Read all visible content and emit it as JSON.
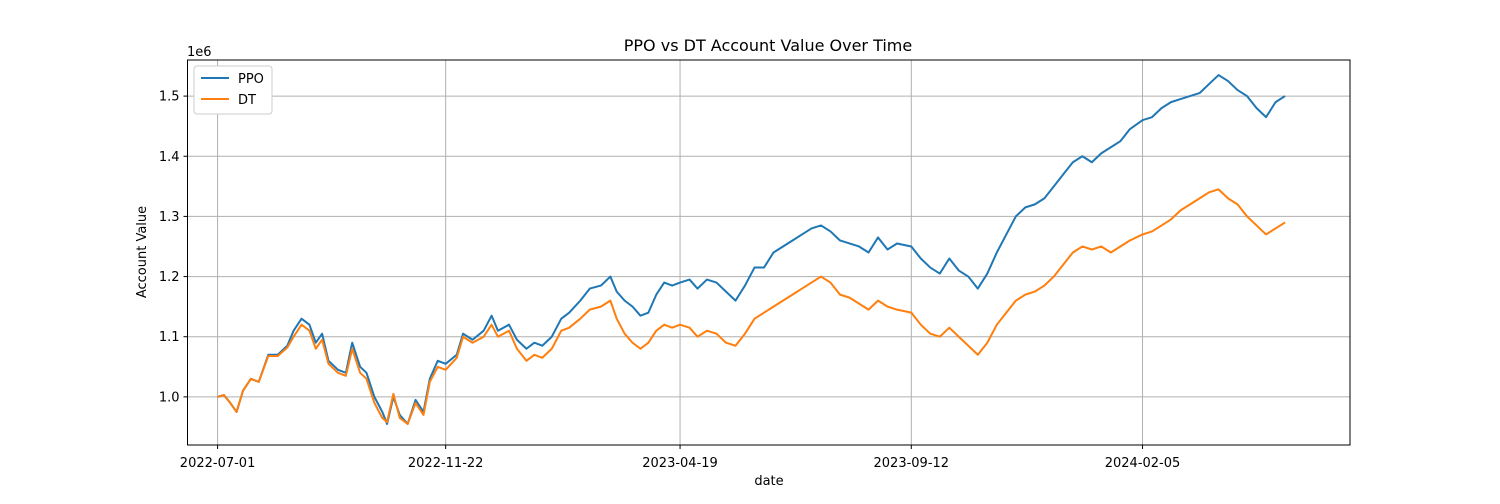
{
  "chart_data": {
    "type": "line",
    "title": "PPO vs DT Account Value Over Time",
    "xlabel": "date",
    "ylabel": "Account Value",
    "y_offset_label": "1e6",
    "xlim": [
      "2022-06-12",
      "2024-06-15"
    ],
    "ylim": [
      0.92,
      1.56
    ],
    "grid": true,
    "legend_position": "upper-left",
    "x_ticks": [
      "2022-07-01",
      "2022-11-22",
      "2023-04-19",
      "2023-09-12",
      "2024-02-05"
    ],
    "y_ticks": [
      1.0,
      1.1,
      1.2,
      1.3,
      1.4,
      1.5
    ],
    "y_tick_labels": [
      "1.0",
      "1.1",
      "1.2",
      "1.3",
      "1.4",
      "1.5"
    ],
    "series": [
      {
        "name": "PPO",
        "color": "#1f77b4",
        "points": [
          [
            "2022-07-01",
            1.0
          ],
          [
            "2022-07-05",
            1.003
          ],
          [
            "2022-07-09",
            0.99
          ],
          [
            "2022-07-13",
            0.975
          ],
          [
            "2022-07-17",
            1.01
          ],
          [
            "2022-07-22",
            1.03
          ],
          [
            "2022-07-27",
            1.025
          ],
          [
            "2022-08-02",
            1.07
          ],
          [
            "2022-08-08",
            1.07
          ],
          [
            "2022-08-14",
            1.085
          ],
          [
            "2022-08-18",
            1.11
          ],
          [
            "2022-08-23",
            1.13
          ],
          [
            "2022-08-28",
            1.12
          ],
          [
            "2022-09-01",
            1.09
          ],
          [
            "2022-09-05",
            1.105
          ],
          [
            "2022-09-09",
            1.06
          ],
          [
            "2022-09-15",
            1.045
          ],
          [
            "2022-09-20",
            1.04
          ],
          [
            "2022-09-24",
            1.09
          ],
          [
            "2022-09-29",
            1.05
          ],
          [
            "2022-10-03",
            1.04
          ],
          [
            "2022-10-08",
            1.0
          ],
          [
            "2022-10-13",
            0.975
          ],
          [
            "2022-10-16",
            0.955
          ],
          [
            "2022-10-20",
            1.0
          ],
          [
            "2022-10-24",
            0.97
          ],
          [
            "2022-10-29",
            0.955
          ],
          [
            "2022-11-03",
            0.995
          ],
          [
            "2022-11-08",
            0.975
          ],
          [
            "2022-11-12",
            1.03
          ],
          [
            "2022-11-17",
            1.06
          ],
          [
            "2022-11-22",
            1.055
          ],
          [
            "2022-11-29",
            1.07
          ],
          [
            "2022-12-03",
            1.105
          ],
          [
            "2022-12-09",
            1.095
          ],
          [
            "2022-12-16",
            1.11
          ],
          [
            "2022-12-21",
            1.135
          ],
          [
            "2022-12-25",
            1.11
          ],
          [
            "2023-01-01",
            1.12
          ],
          [
            "2023-01-06",
            1.095
          ],
          [
            "2023-01-12",
            1.08
          ],
          [
            "2023-01-17",
            1.09
          ],
          [
            "2023-01-22",
            1.085
          ],
          [
            "2023-01-28",
            1.1
          ],
          [
            "2023-02-03",
            1.13
          ],
          [
            "2023-02-08",
            1.14
          ],
          [
            "2023-02-15",
            1.16
          ],
          [
            "2023-02-21",
            1.18
          ],
          [
            "2023-02-28",
            1.185
          ],
          [
            "2023-03-06",
            1.2
          ],
          [
            "2023-03-10",
            1.175
          ],
          [
            "2023-03-15",
            1.16
          ],
          [
            "2023-03-20",
            1.15
          ],
          [
            "2023-03-25",
            1.135
          ],
          [
            "2023-03-30",
            1.14
          ],
          [
            "2023-04-04",
            1.17
          ],
          [
            "2023-04-09",
            1.19
          ],
          [
            "2023-04-14",
            1.185
          ],
          [
            "2023-04-19",
            1.19
          ],
          [
            "2023-04-25",
            1.195
          ],
          [
            "2023-04-30",
            1.18
          ],
          [
            "2023-05-06",
            1.195
          ],
          [
            "2023-05-12",
            1.19
          ],
          [
            "2023-05-18",
            1.175
          ],
          [
            "2023-05-24",
            1.16
          ],
          [
            "2023-05-30",
            1.185
          ],
          [
            "2023-06-05",
            1.215
          ],
          [
            "2023-06-11",
            1.215
          ],
          [
            "2023-06-17",
            1.24
          ],
          [
            "2023-06-23",
            1.25
          ],
          [
            "2023-06-29",
            1.26
          ],
          [
            "2023-07-05",
            1.27
          ],
          [
            "2023-07-11",
            1.28
          ],
          [
            "2023-07-17",
            1.285
          ],
          [
            "2023-07-23",
            1.275
          ],
          [
            "2023-07-29",
            1.26
          ],
          [
            "2023-08-04",
            1.255
          ],
          [
            "2023-08-10",
            1.25
          ],
          [
            "2023-08-16",
            1.24
          ],
          [
            "2023-08-22",
            1.265
          ],
          [
            "2023-08-28",
            1.245
          ],
          [
            "2023-09-03",
            1.255
          ],
          [
            "2023-09-12",
            1.25
          ],
          [
            "2023-09-18",
            1.23
          ],
          [
            "2023-09-24",
            1.215
          ],
          [
            "2023-09-30",
            1.205
          ],
          [
            "2023-10-06",
            1.23
          ],
          [
            "2023-10-12",
            1.21
          ],
          [
            "2023-10-18",
            1.2
          ],
          [
            "2023-10-24",
            1.18
          ],
          [
            "2023-10-30",
            1.205
          ],
          [
            "2023-11-05",
            1.24
          ],
          [
            "2023-11-11",
            1.27
          ],
          [
            "2023-11-17",
            1.3
          ],
          [
            "2023-11-23",
            1.315
          ],
          [
            "2023-11-29",
            1.32
          ],
          [
            "2023-12-05",
            1.33
          ],
          [
            "2023-12-11",
            1.35
          ],
          [
            "2023-12-17",
            1.37
          ],
          [
            "2023-12-23",
            1.39
          ],
          [
            "2023-12-29",
            1.4
          ],
          [
            "2024-01-04",
            1.39
          ],
          [
            "2024-01-10",
            1.405
          ],
          [
            "2024-01-16",
            1.415
          ],
          [
            "2024-01-22",
            1.425
          ],
          [
            "2024-01-28",
            1.445
          ],
          [
            "2024-02-05",
            1.46
          ],
          [
            "2024-02-11",
            1.465
          ],
          [
            "2024-02-17",
            1.48
          ],
          [
            "2024-02-23",
            1.49
          ],
          [
            "2024-02-29",
            1.495
          ],
          [
            "2024-03-06",
            1.5
          ],
          [
            "2024-03-12",
            1.505
          ],
          [
            "2024-03-18",
            1.52
          ],
          [
            "2024-03-24",
            1.535
          ],
          [
            "2024-03-30",
            1.525
          ],
          [
            "2024-04-05",
            1.51
          ],
          [
            "2024-04-11",
            1.5
          ],
          [
            "2024-04-17",
            1.48
          ],
          [
            "2024-04-23",
            1.465
          ],
          [
            "2024-04-29",
            1.49
          ],
          [
            "2024-05-05",
            1.5
          ]
        ]
      },
      {
        "name": "DT",
        "color": "#ff7f0e",
        "points": [
          [
            "2022-07-01",
            1.0
          ],
          [
            "2022-07-05",
            1.003
          ],
          [
            "2022-07-09",
            0.99
          ],
          [
            "2022-07-13",
            0.975
          ],
          [
            "2022-07-17",
            1.01
          ],
          [
            "2022-07-22",
            1.03
          ],
          [
            "2022-07-27",
            1.025
          ],
          [
            "2022-08-02",
            1.068
          ],
          [
            "2022-08-08",
            1.068
          ],
          [
            "2022-08-14",
            1.082
          ],
          [
            "2022-08-18",
            1.1
          ],
          [
            "2022-08-23",
            1.12
          ],
          [
            "2022-08-28",
            1.11
          ],
          [
            "2022-09-01",
            1.08
          ],
          [
            "2022-09-05",
            1.095
          ],
          [
            "2022-09-09",
            1.055
          ],
          [
            "2022-09-15",
            1.04
          ],
          [
            "2022-09-20",
            1.035
          ],
          [
            "2022-09-24",
            1.08
          ],
          [
            "2022-09-29",
            1.04
          ],
          [
            "2022-10-03",
            1.03
          ],
          [
            "2022-10-08",
            0.99
          ],
          [
            "2022-10-13",
            0.965
          ],
          [
            "2022-10-16",
            0.958
          ],
          [
            "2022-10-20",
            1.005
          ],
          [
            "2022-10-24",
            0.965
          ],
          [
            "2022-10-29",
            0.955
          ],
          [
            "2022-11-03",
            0.99
          ],
          [
            "2022-11-08",
            0.97
          ],
          [
            "2022-11-12",
            1.025
          ],
          [
            "2022-11-17",
            1.05
          ],
          [
            "2022-11-22",
            1.045
          ],
          [
            "2022-11-29",
            1.065
          ],
          [
            "2022-12-03",
            1.1
          ],
          [
            "2022-12-09",
            1.09
          ],
          [
            "2022-12-16",
            1.1
          ],
          [
            "2022-12-21",
            1.12
          ],
          [
            "2022-12-25",
            1.1
          ],
          [
            "2023-01-01",
            1.11
          ],
          [
            "2023-01-06",
            1.08
          ],
          [
            "2023-01-12",
            1.06
          ],
          [
            "2023-01-17",
            1.07
          ],
          [
            "2023-01-22",
            1.065
          ],
          [
            "2023-01-28",
            1.08
          ],
          [
            "2023-02-03",
            1.11
          ],
          [
            "2023-02-08",
            1.115
          ],
          [
            "2023-02-15",
            1.13
          ],
          [
            "2023-02-21",
            1.145
          ],
          [
            "2023-02-28",
            1.15
          ],
          [
            "2023-03-06",
            1.16
          ],
          [
            "2023-03-10",
            1.13
          ],
          [
            "2023-03-15",
            1.105
          ],
          [
            "2023-03-20",
            1.09
          ],
          [
            "2023-03-25",
            1.08
          ],
          [
            "2023-03-30",
            1.09
          ],
          [
            "2023-04-04",
            1.11
          ],
          [
            "2023-04-09",
            1.12
          ],
          [
            "2023-04-14",
            1.115
          ],
          [
            "2023-04-19",
            1.12
          ],
          [
            "2023-04-25",
            1.115
          ],
          [
            "2023-04-30",
            1.1
          ],
          [
            "2023-05-06",
            1.11
          ],
          [
            "2023-05-12",
            1.105
          ],
          [
            "2023-05-18",
            1.09
          ],
          [
            "2023-05-24",
            1.085
          ],
          [
            "2023-05-30",
            1.105
          ],
          [
            "2023-06-05",
            1.13
          ],
          [
            "2023-06-11",
            1.14
          ],
          [
            "2023-06-17",
            1.15
          ],
          [
            "2023-06-23",
            1.16
          ],
          [
            "2023-06-29",
            1.17
          ],
          [
            "2023-07-05",
            1.18
          ],
          [
            "2023-07-11",
            1.19
          ],
          [
            "2023-07-17",
            1.2
          ],
          [
            "2023-07-23",
            1.19
          ],
          [
            "2023-07-29",
            1.17
          ],
          [
            "2023-08-04",
            1.165
          ],
          [
            "2023-08-10",
            1.155
          ],
          [
            "2023-08-16",
            1.145
          ],
          [
            "2023-08-22",
            1.16
          ],
          [
            "2023-08-28",
            1.15
          ],
          [
            "2023-09-03",
            1.145
          ],
          [
            "2023-09-12",
            1.14
          ],
          [
            "2023-09-18",
            1.12
          ],
          [
            "2023-09-24",
            1.105
          ],
          [
            "2023-09-30",
            1.1
          ],
          [
            "2023-10-06",
            1.115
          ],
          [
            "2023-10-12",
            1.1
          ],
          [
            "2023-10-18",
            1.085
          ],
          [
            "2023-10-24",
            1.07
          ],
          [
            "2023-10-30",
            1.09
          ],
          [
            "2023-11-05",
            1.12
          ],
          [
            "2023-11-11",
            1.14
          ],
          [
            "2023-11-17",
            1.16
          ],
          [
            "2023-11-23",
            1.17
          ],
          [
            "2023-11-29",
            1.175
          ],
          [
            "2023-12-05",
            1.185
          ],
          [
            "2023-12-11",
            1.2
          ],
          [
            "2023-12-17",
            1.22
          ],
          [
            "2023-12-23",
            1.24
          ],
          [
            "2023-12-29",
            1.25
          ],
          [
            "2024-01-04",
            1.245
          ],
          [
            "2024-01-10",
            1.25
          ],
          [
            "2024-01-16",
            1.24
          ],
          [
            "2024-01-22",
            1.25
          ],
          [
            "2024-01-28",
            1.26
          ],
          [
            "2024-02-05",
            1.27
          ],
          [
            "2024-02-11",
            1.275
          ],
          [
            "2024-02-17",
            1.285
          ],
          [
            "2024-02-23",
            1.295
          ],
          [
            "2024-02-29",
            1.31
          ],
          [
            "2024-03-06",
            1.32
          ],
          [
            "2024-03-12",
            1.33
          ],
          [
            "2024-03-18",
            1.34
          ],
          [
            "2024-03-24",
            1.345
          ],
          [
            "2024-03-30",
            1.33
          ],
          [
            "2024-04-05",
            1.32
          ],
          [
            "2024-04-11",
            1.3
          ],
          [
            "2024-04-17",
            1.285
          ],
          [
            "2024-04-23",
            1.27
          ],
          [
            "2024-04-29",
            1.28
          ],
          [
            "2024-05-05",
            1.29
          ]
        ]
      }
    ]
  }
}
